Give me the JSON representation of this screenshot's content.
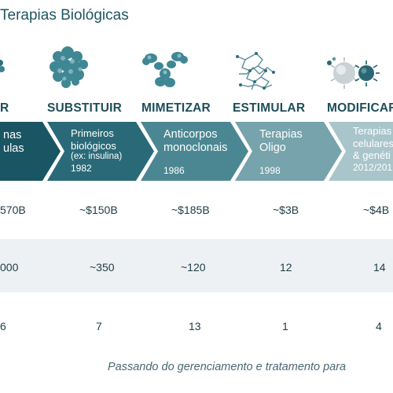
{
  "header": {
    "title": "Terapias Biológicas"
  },
  "icons": [
    "small-molecule-icon",
    "protein-icon",
    "antibody-icon",
    "oligo-icon",
    "cell-therapy-icon"
  ],
  "verbs": [
    "R",
    "SUBSTITUIR",
    "MIMETIZAR",
    "ESTIMULAR",
    "MODIFICAR"
  ],
  "chevrons": [
    {
      "line1": "nas",
      "line2": "ulas"
    },
    {
      "line1": "Primeiros",
      "line2": "biológicos",
      "line3": "(ex: insulina)",
      "year": "1982"
    },
    {
      "line1": "Anticorpos",
      "line2": "monoclonais",
      "year": "1986"
    },
    {
      "line1": "Terapias",
      "line2": "Oligo",
      "year": "1998"
    },
    {
      "line1": "Terapias",
      "line2": "celulares",
      "line3": "& genéti",
      "year": "2012/201"
    }
  ],
  "colors": [
    "#1a5563",
    "#2a6a78",
    "#4b8793",
    "#76a3ac",
    "#a9c5cb"
  ],
  "rows": [
    [
      "570B",
      "~$150B",
      "~$185B",
      "~$3B",
      "~$4B"
    ],
    [
      "000",
      "~350",
      "~120",
      "12",
      "14"
    ],
    [
      "6",
      "7",
      "13",
      "1",
      "4"
    ]
  ],
  "footer": {
    "text": "Passando do gerenciamento e tratamento para"
  }
}
